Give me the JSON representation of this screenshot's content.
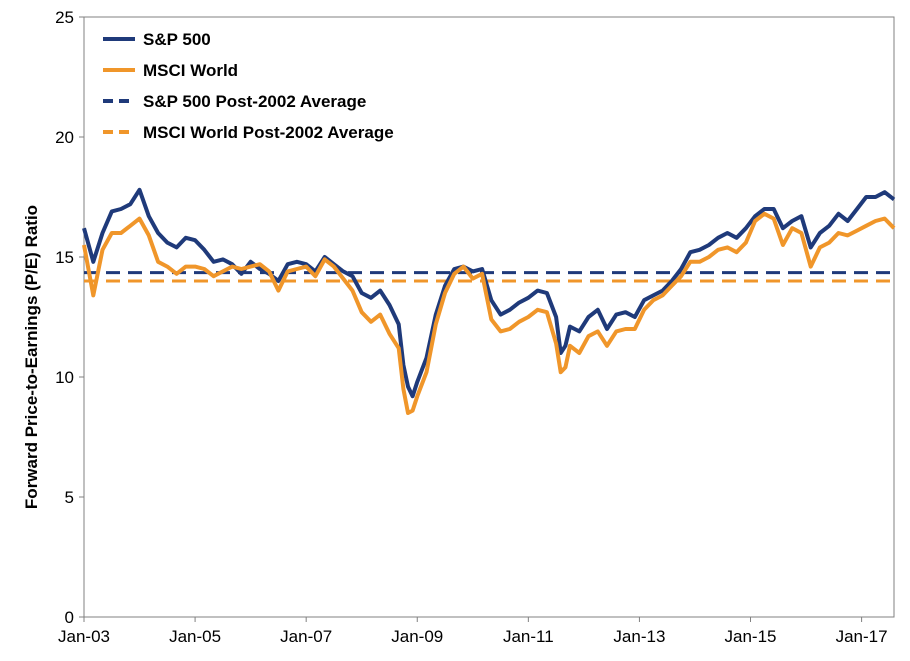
{
  "chart_data": {
    "type": "line",
    "title": "",
    "xlabel": "",
    "ylabel": "Forward Price-to-Earnings (P/E) Ratio",
    "ylim": [
      0,
      25
    ],
    "y_ticks": [
      0,
      5,
      10,
      15,
      20,
      25
    ],
    "x_ticks": [
      "Jan-03",
      "Jan-05",
      "Jan-07",
      "Jan-09",
      "Jan-11",
      "Jan-13",
      "Jan-15",
      "Jan-17"
    ],
    "x_range": [
      "2003-01",
      "2017-08"
    ],
    "grid": false,
    "legend_position": "top-left",
    "colors": {
      "sp500": "#1f3a7a",
      "msci": "#f0962a"
    },
    "series": [
      {
        "name": "S&P 500",
        "style": "solid",
        "x": [
          "2003-01",
          "2003-03",
          "2003-05",
          "2003-07",
          "2003-09",
          "2003-11",
          "2004-01",
          "2004-03",
          "2004-05",
          "2004-07",
          "2004-09",
          "2004-11",
          "2005-01",
          "2005-03",
          "2005-05",
          "2005-07",
          "2005-09",
          "2005-11",
          "2006-01",
          "2006-03",
          "2006-05",
          "2006-07",
          "2006-09",
          "2006-11",
          "2007-01",
          "2007-03",
          "2007-05",
          "2007-07",
          "2007-09",
          "2007-11",
          "2008-01",
          "2008-03",
          "2008-05",
          "2008-07",
          "2008-09",
          "2008-10",
          "2008-11",
          "2008-12",
          "2009-01",
          "2009-03",
          "2009-05",
          "2009-07",
          "2009-09",
          "2009-11",
          "2010-01",
          "2010-03",
          "2010-05",
          "2010-07",
          "2010-09",
          "2010-11",
          "2011-01",
          "2011-03",
          "2011-05",
          "2011-07",
          "2011-08",
          "2011-09",
          "2011-10",
          "2011-12",
          "2012-02",
          "2012-04",
          "2012-06",
          "2012-08",
          "2012-10",
          "2012-12",
          "2013-02",
          "2013-04",
          "2013-06",
          "2013-08",
          "2013-10",
          "2013-12",
          "2014-02",
          "2014-04",
          "2014-06",
          "2014-08",
          "2014-10",
          "2014-12",
          "2015-02",
          "2015-04",
          "2015-06",
          "2015-08",
          "2015-10",
          "2015-12",
          "2016-02",
          "2016-04",
          "2016-06",
          "2016-08",
          "2016-10",
          "2016-12",
          "2017-02",
          "2017-04",
          "2017-06",
          "2017-08"
        ],
        "values": [
          16.2,
          14.8,
          16.0,
          16.9,
          17.0,
          17.2,
          17.8,
          16.7,
          16.0,
          15.6,
          15.4,
          15.8,
          15.7,
          15.3,
          14.8,
          14.9,
          14.7,
          14.3,
          14.8,
          14.5,
          14.3,
          14.0,
          14.7,
          14.8,
          14.7,
          14.4,
          15.0,
          14.7,
          14.4,
          14.2,
          13.5,
          13.3,
          13.6,
          13.0,
          12.2,
          10.5,
          9.6,
          9.2,
          9.8,
          10.8,
          12.6,
          13.8,
          14.5,
          14.6,
          14.4,
          14.5,
          13.2,
          12.6,
          12.8,
          13.1,
          13.3,
          13.6,
          13.5,
          12.5,
          11.0,
          11.3,
          12.1,
          11.9,
          12.5,
          12.8,
          12.0,
          12.6,
          12.7,
          12.5,
          13.2,
          13.4,
          13.6,
          14.0,
          14.5,
          15.2,
          15.3,
          15.5,
          15.8,
          16.0,
          15.8,
          16.2,
          16.7,
          17.0,
          17.0,
          16.2,
          16.5,
          16.7,
          15.4,
          16.0,
          16.3,
          16.8,
          16.5,
          17.0,
          17.5,
          17.5,
          17.7,
          17.4
        ]
      },
      {
        "name": "MSCI World",
        "style": "solid",
        "x": [
          "2003-01",
          "2003-03",
          "2003-05",
          "2003-07",
          "2003-09",
          "2003-11",
          "2004-01",
          "2004-03",
          "2004-05",
          "2004-07",
          "2004-09",
          "2004-11",
          "2005-01",
          "2005-03",
          "2005-05",
          "2005-07",
          "2005-09",
          "2005-11",
          "2006-01",
          "2006-03",
          "2006-05",
          "2006-07",
          "2006-09",
          "2006-11",
          "2007-01",
          "2007-03",
          "2007-05",
          "2007-07",
          "2007-09",
          "2007-11",
          "2008-01",
          "2008-03",
          "2008-05",
          "2008-07",
          "2008-09",
          "2008-10",
          "2008-11",
          "2008-12",
          "2009-01",
          "2009-03",
          "2009-05",
          "2009-07",
          "2009-09",
          "2009-11",
          "2010-01",
          "2010-03",
          "2010-05",
          "2010-07",
          "2010-09",
          "2010-11",
          "2011-01",
          "2011-03",
          "2011-05",
          "2011-07",
          "2011-08",
          "2011-09",
          "2011-10",
          "2011-12",
          "2012-02",
          "2012-04",
          "2012-06",
          "2012-08",
          "2012-10",
          "2012-12",
          "2013-02",
          "2013-04",
          "2013-06",
          "2013-08",
          "2013-10",
          "2013-12",
          "2014-02",
          "2014-04",
          "2014-06",
          "2014-08",
          "2014-10",
          "2014-12",
          "2015-02",
          "2015-04",
          "2015-06",
          "2015-08",
          "2015-10",
          "2015-12",
          "2016-02",
          "2016-04",
          "2016-06",
          "2016-08",
          "2016-10",
          "2016-12",
          "2017-02",
          "2017-04",
          "2017-06",
          "2017-08"
        ],
        "values": [
          15.5,
          13.4,
          15.3,
          16.0,
          16.0,
          16.3,
          16.6,
          15.9,
          14.8,
          14.6,
          14.3,
          14.6,
          14.6,
          14.5,
          14.2,
          14.4,
          14.6,
          14.5,
          14.6,
          14.7,
          14.4,
          13.6,
          14.4,
          14.5,
          14.6,
          14.2,
          14.9,
          14.6,
          14.1,
          13.6,
          12.7,
          12.3,
          12.6,
          11.8,
          11.2,
          9.5,
          8.5,
          8.6,
          9.2,
          10.2,
          12.2,
          13.5,
          14.3,
          14.6,
          14.1,
          14.3,
          12.4,
          11.9,
          12.0,
          12.3,
          12.5,
          12.8,
          12.7,
          11.4,
          10.2,
          10.4,
          11.3,
          11.0,
          11.7,
          11.9,
          11.3,
          11.9,
          12.0,
          12.0,
          12.8,
          13.2,
          13.4,
          13.8,
          14.2,
          14.8,
          14.8,
          15.0,
          15.3,
          15.4,
          15.2,
          15.6,
          16.5,
          16.8,
          16.6,
          15.5,
          16.2,
          16.0,
          14.6,
          15.4,
          15.6,
          16.0,
          15.9,
          16.1,
          16.3,
          16.5,
          16.6,
          16.2
        ]
      },
      {
        "name": "S&P 500 Post-2002 Average",
        "style": "dashed",
        "value": 14.35
      },
      {
        "name": "MSCI World Post-2002 Average",
        "style": "dashed",
        "value": 14.0
      }
    ]
  }
}
